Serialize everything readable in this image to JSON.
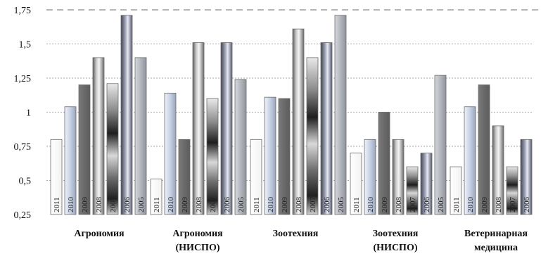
{
  "chart_data": {
    "type": "bar",
    "title": "",
    "xlabel": "",
    "ylabel": "",
    "ylim": [
      0.25,
      1.75
    ],
    "yticks": [
      "0,25",
      "0,5",
      "0,75",
      "1",
      "1,25",
      "1,5",
      "1,75"
    ],
    "grid": true,
    "categories": [
      [
        "Агрономия"
      ],
      [
        "Агрономия",
        "(НИСПО)"
      ],
      [
        "Зоотехния"
      ],
      [
        "Зоотехния",
        "(НИСПО)"
      ],
      [
        "Ветеринарная",
        "медицина"
      ]
    ],
    "series": [
      {
        "name": "2011",
        "values": [
          0.8,
          0.51,
          0.8,
          0.7,
          0.6
        ],
        "color": "#ffffff",
        "style": "white"
      },
      {
        "name": "2010",
        "values": [
          1.04,
          1.14,
          1.11,
          0.8,
          1.04
        ],
        "color": "#c9d3e6",
        "style": "light-blue"
      },
      {
        "name": "2009",
        "values": [
          1.2,
          0.8,
          1.1,
          1.0,
          1.2
        ],
        "color": "#6e6e6e",
        "style": "dark-gray"
      },
      {
        "name": "2008",
        "values": [
          1.4,
          1.51,
          1.61,
          0.8,
          0.9
        ],
        "color": "#8f8f8f",
        "style": "metallic"
      },
      {
        "name": "2007",
        "values": [
          1.21,
          1.1,
          1.4,
          0.6,
          0.6
        ],
        "color": "#555555",
        "style": "chrome"
      },
      {
        "name": "2006",
        "values": [
          1.71,
          1.51,
          1.51,
          0.7,
          0.8
        ],
        "color": "#7b7f96",
        "style": "blue-metal"
      },
      {
        "name": "2005",
        "values": [
          1.4,
          1.24,
          1.71,
          1.27,
          null
        ],
        "color": "#b4b8c0",
        "style": "silver"
      }
    ]
  }
}
